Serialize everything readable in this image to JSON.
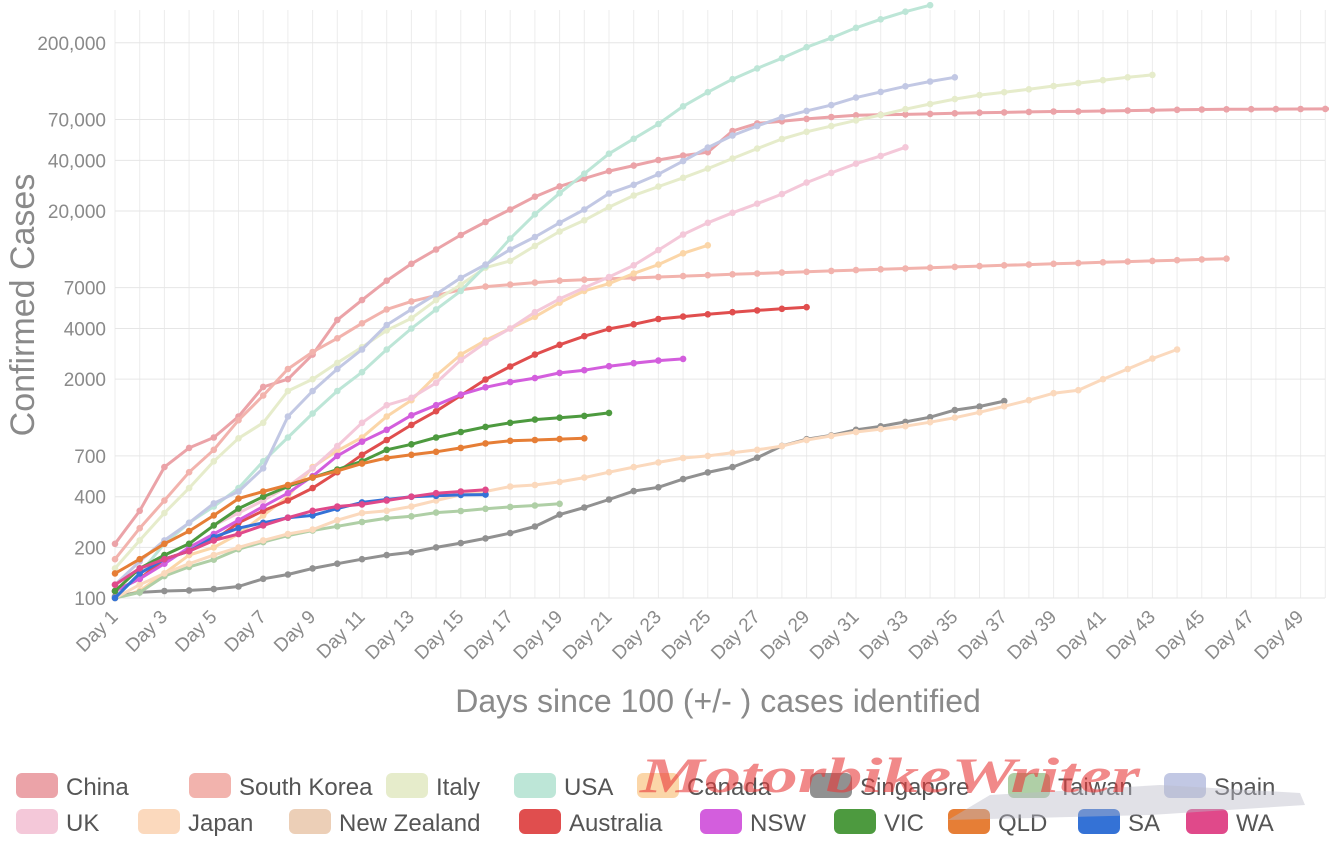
{
  "chart_data": {
    "type": "line",
    "title": "",
    "xlabel": "Days since 100 (+/- ) cases identified",
    "ylabel": "Confirmed Cases",
    "y_scale": "log",
    "ylim": [
      100,
      250000
    ],
    "xlim": [
      1,
      51
    ],
    "grid": true,
    "legend_position": "bottom",
    "x_tick_labels": [
      "Day 1",
      "Day 3",
      "Day 5",
      "Day 7",
      "Day 9",
      "Day 11",
      "Day 13",
      "Day 15",
      "Day 17",
      "Day 19",
      "Day 21",
      "Day 23",
      "Day 25",
      "Day 27",
      "Day 29",
      "Day 31",
      "Day 33",
      "Day 35",
      "Day 37",
      "Day 39",
      "Day 41",
      "Day 43",
      "Day 45",
      "Day 47",
      "Day 49"
    ],
    "y_ticks": [
      {
        "value": 100,
        "label": "100"
      },
      {
        "value": 200,
        "label": "200"
      },
      {
        "value": 400,
        "label": "400"
      },
      {
        "value": 700,
        "label": "700"
      },
      {
        "value": 2000,
        "label": "2000"
      },
      {
        "value": 4000,
        "label": "4000"
      },
      {
        "value": 7000,
        "label": "7000"
      },
      {
        "value": 20000,
        "label": "20,000"
      },
      {
        "value": 40000,
        "label": "40,000"
      },
      {
        "value": 70000,
        "label": "70,000"
      },
      {
        "value": 200000,
        "label": "200,000"
      }
    ],
    "series": [
      {
        "name": "China",
        "color": "#eba3a8",
        "values": [
          210,
          330,
          600,
          780,
          900,
          1200,
          1800,
          2000,
          2800,
          4500,
          5900,
          7700,
          9700,
          11800,
          14400,
          17200,
          20400,
          24300,
          28000,
          31200,
          34500,
          37200,
          40200,
          42700,
          44700,
          59800,
          66300,
          68300,
          70500,
          72400,
          74100,
          74600,
          75000,
          75500,
          76200,
          76800,
          77100,
          77600,
          78000,
          78200,
          78600,
          79000,
          79400,
          79900,
          80200,
          80400,
          80600,
          80700,
          80800,
          80900,
          81000
        ]
      },
      {
        "name": "South Korea",
        "color": "#f2b3ad",
        "values": [
          170,
          260,
          380,
          560,
          760,
          1140,
          1600,
          2300,
          2900,
          3500,
          4300,
          5200,
          5800,
          6300,
          6800,
          7100,
          7300,
          7500,
          7700,
          7800,
          7900,
          8000,
          8100,
          8200,
          8300,
          8400,
          8500,
          8600,
          8700,
          8800,
          8900,
          9000,
          9100,
          9200,
          9300,
          9400,
          9500,
          9600,
          9700,
          9800,
          9900,
          10000,
          10100,
          10200,
          10300,
          10400
        ]
      },
      {
        "name": "Italy",
        "color": "#e6eccb",
        "values": [
          150,
          220,
          320,
          450,
          650,
          890,
          1100,
          1700,
          2000,
          2500,
          3100,
          3900,
          4600,
          5900,
          7300,
          9200,
          10100,
          12400,
          15100,
          17600,
          21100,
          24700,
          27900,
          31500,
          35700,
          41000,
          47000,
          53600,
          59100,
          63900,
          69100,
          74400,
          80500,
          86500,
          92500,
          97700,
          101700,
          105800,
          110600,
          115200,
          119800,
          124600,
          128900
        ]
      },
      {
        "name": "USA",
        "color": "#bde6d7",
        "values": [
          100,
          140,
          210,
          280,
          350,
          450,
          650,
          900,
          1250,
          1700,
          2200,
          3000,
          4000,
          5200,
          6700,
          9400,
          13700,
          19100,
          25500,
          33300,
          43800,
          53700,
          65800,
          83800,
          101700,
          121500,
          140900,
          161800,
          188200,
          213400,
          245500,
          275600,
          305800,
          334700
        ]
      },
      {
        "name": "Canada",
        "color": "#fbd6a8",
        "values": [
          100,
          110,
          140,
          180,
          200,
          240,
          310,
          400,
          600,
          750,
          900,
          1200,
          1500,
          2100,
          2800,
          3400,
          4000,
          4700,
          5700,
          6700,
          7400,
          8500,
          9600,
          11200,
          12500
        ]
      },
      {
        "name": "Singapore",
        "color": "#919191",
        "values": [
          102,
          108,
          110,
          111,
          113,
          117,
          130,
          138,
          150,
          160,
          170,
          180,
          187,
          200,
          212,
          226,
          243,
          266,
          313,
          345,
          385,
          432,
          455,
          509,
          558,
          600,
          683,
          802,
          879,
          926,
          1000,
          1049,
          1114,
          1189,
          1309,
          1375,
          1481
        ]
      },
      {
        "name": "Taiwan",
        "color": "#afcfa6",
        "values": [
          100,
          108,
          135,
          153,
          169,
          195,
          215,
          235,
          252,
          267,
          283,
          298,
          306,
          322,
          329,
          339,
          348,
          355,
          363
        ]
      },
      {
        "name": "Spain",
        "color": "#c2c8e4",
        "values": [
          120,
          165,
          220,
          280,
          365,
          430,
          590,
          1200,
          1700,
          2300,
          3000,
          4200,
          5200,
          6400,
          8000,
          9600,
          11800,
          14000,
          17000,
          20400,
          25400,
          28600,
          33100,
          39600,
          47600,
          56200,
          64000,
          72200,
          78700,
          85200,
          94400,
          102100,
          110200,
          117700,
          124700
        ]
      },
      {
        "name": "UK",
        "color": "#f4c8d9",
        "values": [
          120,
          150,
          180,
          210,
          270,
          320,
          380,
          460,
          590,
          800,
          1100,
          1400,
          1550,
          1900,
          2600,
          3300,
          4000,
          5000,
          6000,
          7000,
          8100,
          9500,
          11700,
          14500,
          17000,
          19500,
          22100,
          25200,
          29500,
          33700,
          38200,
          42500,
          47800
        ]
      },
      {
        "name": "Japan",
        "color": "#fbd9bd",
        "values": [
          100,
          120,
          140,
          160,
          180,
          200,
          220,
          240,
          255,
          290,
          320,
          330,
          350,
          380,
          410,
          430,
          460,
          470,
          490,
          520,
          560,
          600,
          640,
          680,
          700,
          730,
          760,
          800,
          870,
          920,
          970,
          1010,
          1050,
          1110,
          1180,
          1270,
          1380,
          1500,
          1650,
          1720,
          2000,
          2300,
          2650,
          3000
        ]
      },
      {
        "name": "New Zealand",
        "color": "#eccfb7",
        "values": []
      },
      {
        "name": "Australia",
        "color": "#e04e4e",
        "values": [
          110,
          130,
          170,
          190,
          220,
          280,
          330,
          380,
          450,
          560,
          710,
          870,
          1070,
          1290,
          1600,
          1990,
          2380,
          2800,
          3200,
          3600,
          3980,
          4240,
          4560,
          4710,
          4860,
          5000,
          5130,
          5240,
          5360
        ]
      },
      {
        "name": "NSW",
        "color": "#d35edd",
        "values": [
          110,
          130,
          160,
          200,
          240,
          290,
          350,
          420,
          530,
          700,
          850,
          1000,
          1220,
          1400,
          1620,
          1790,
          1920,
          2030,
          2180,
          2260,
          2390,
          2490,
          2580,
          2640
        ]
      },
      {
        "name": "VIC",
        "color": "#4d9a3f",
        "values": [
          110,
          150,
          180,
          210,
          270,
          340,
          400,
          460,
          520,
          580,
          650,
          760,
          820,
          900,
          970,
          1040,
          1100,
          1150,
          1180,
          1210,
          1260
        ]
      },
      {
        "name": "QLD",
        "color": "#e67e36",
        "values": [
          140,
          170,
          210,
          250,
          310,
          390,
          430,
          470,
          520,
          570,
          630,
          680,
          710,
          740,
          780,
          830,
          860,
          870,
          880,
          890
        ]
      },
      {
        "name": "SA",
        "color": "#3472d6",
        "values": [
          100,
          140,
          170,
          190,
          230,
          260,
          280,
          300,
          310,
          340,
          370,
          385,
          400,
          405,
          410,
          412
        ]
      },
      {
        "name": "WA",
        "color": "#e0498a",
        "values": [
          120,
          150,
          170,
          190,
          220,
          240,
          270,
          300,
          330,
          350,
          360,
          380,
          400,
          420,
          430,
          440
        ]
      }
    ],
    "watermark": "MotorbikeWriter"
  }
}
